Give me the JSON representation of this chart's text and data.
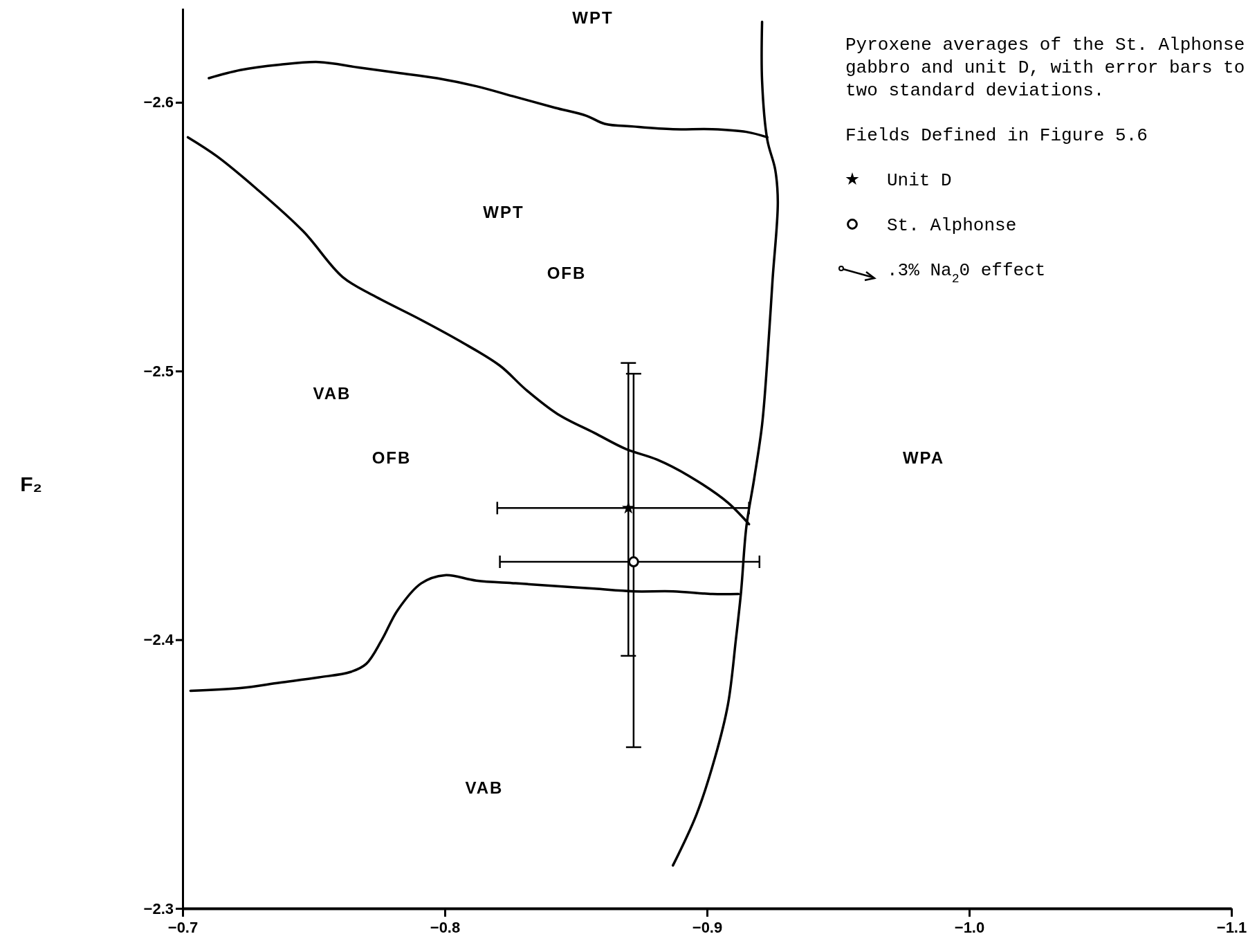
{
  "chart_data": {
    "type": "scatter",
    "ylabel": "F₂",
    "xlim": [
      -0.7,
      -1.1
    ],
    "ylim": [
      -2.3,
      -2.635
    ],
    "xticks": [
      {
        "value": -0.7,
        "label": "−0.7"
      },
      {
        "value": -0.8,
        "label": "−0.8"
      },
      {
        "value": -0.9,
        "label": "−0.9"
      },
      {
        "value": -1.0,
        "label": "−1.0"
      },
      {
        "value": -1.1,
        "label": "−1.1"
      }
    ],
    "yticks": [
      {
        "value": -2.3,
        "label": "−2.3"
      },
      {
        "value": -2.4,
        "label": "−2.4"
      },
      {
        "value": -2.5,
        "label": "−2.5"
      },
      {
        "value": -2.6,
        "label": "−2.6"
      }
    ],
    "legend": "top right",
    "grid": false,
    "series": [
      {
        "type": "line",
        "color": "#000000",
        "marker": "none",
        "x": [
          -0.71,
          -0.722,
          -0.737,
          -0.752,
          -0.767,
          -0.782,
          -0.797,
          -0.812,
          -0.827,
          -0.842,
          -0.854,
          -0.861,
          -0.872,
          -0.887,
          -0.902,
          -0.915,
          -0.923
        ],
        "values": [
          -2.609,
          -2.612,
          -2.614,
          -2.615,
          -2.613,
          -2.611,
          -2.609,
          -2.606,
          -2.602,
          -2.598,
          -2.595,
          -2.592,
          -2.591,
          -2.59,
          -2.59,
          -2.589,
          -2.587
        ]
      },
      {
        "type": "line",
        "color": "#000000",
        "marker": "none",
        "x": [
          -0.702,
          -0.713,
          -0.728,
          -0.746,
          -0.761,
          -0.773,
          -0.791,
          -0.806,
          -0.821,
          -0.831,
          -0.843,
          -0.857,
          -0.869,
          -0.881,
          -0.893,
          -0.908,
          -0.916
        ],
        "values": [
          -2.587,
          -2.58,
          -2.568,
          -2.552,
          -2.535,
          -2.528,
          -2.519,
          -2.511,
          -2.502,
          -2.493,
          -2.484,
          -2.477,
          -2.471,
          -2.467,
          -2.461,
          -2.451,
          -2.443
        ]
      },
      {
        "type": "line",
        "color": "#000000",
        "marker": "none",
        "x": [
          -0.703,
          -0.722,
          -0.737,
          -0.752,
          -0.764,
          -0.77,
          -0.776,
          -0.782,
          -0.791,
          -0.8,
          -0.812,
          -0.827,
          -0.842,
          -0.857,
          -0.872,
          -0.887,
          -0.902,
          -0.912
        ],
        "values": [
          -2.381,
          -2.382,
          -2.384,
          -2.386,
          -2.388,
          -2.391,
          -2.4,
          -2.411,
          -2.421,
          -2.424,
          -2.422,
          -2.421,
          -2.42,
          -2.419,
          -2.418,
          -2.418,
          -2.417,
          -2.417
        ]
      },
      {
        "type": "line",
        "color": "#000000",
        "marker": "none",
        "x": [
          -0.921,
          -0.921,
          -0.923,
          -0.926,
          -0.927,
          -0.925,
          -0.923,
          -0.921,
          -0.918,
          -0.915,
          -0.913,
          -0.911,
          -0.908,
          -0.903,
          -0.896,
          -0.887
        ],
        "values": [
          -2.63,
          -2.608,
          -2.586,
          -2.575,
          -2.563,
          -2.534,
          -2.504,
          -2.48,
          -2.46,
          -2.442,
          -2.418,
          -2.4,
          -2.376,
          -2.356,
          -2.335,
          -2.316
        ]
      },
      {
        "name": "Unit D",
        "color": "#000000",
        "marker": "star",
        "x": [
          -0.87
        ],
        "values": [
          -2.449
        ],
        "errors": [
          [
            -2.503,
            -2.394
          ]
        ],
        "xerrors": [
          [
            -0.82,
            -0.916
          ]
        ]
      },
      {
        "name": "St. Alphonse",
        "color": "#000000",
        "marker": "circle",
        "x": [
          -0.872
        ],
        "values": [
          -2.429
        ],
        "errors": [
          [
            -2.499,
            -2.36
          ]
        ],
        "xerrors": [
          [
            -0.821,
            -0.92
          ]
        ]
      }
    ],
    "annotations": [
      "Pyroxene averages of the St. Alphonse gabbro and unit D, with error bars to two standard deviations.",
      "Fields Defined in Figure 5.6",
      ".3% Na$_{2}$0 effect",
      "WPT",
      "WPT",
      "OFB",
      "VAB",
      "OFB",
      "WPA",
      "VAB"
    ]
  }
}
